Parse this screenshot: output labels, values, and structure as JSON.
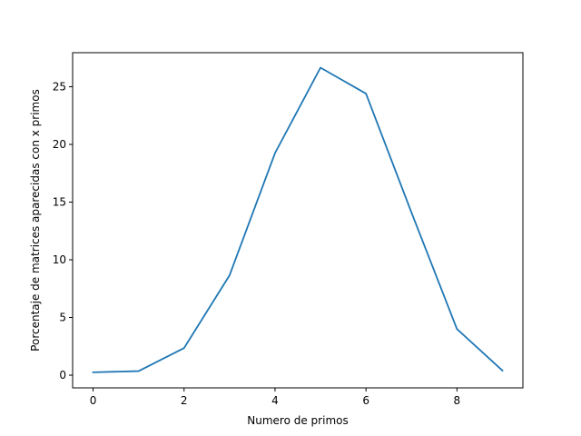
{
  "chart_data": {
    "type": "line",
    "title": "",
    "xlabel": "Numero de primos",
    "ylabel": "Porcentaje de matrices aparecidas con x primos",
    "xlim": [
      -0.45,
      9.45
    ],
    "ylim": [
      -1.1,
      27.95
    ],
    "xticks": [
      0,
      2,
      4,
      6,
      8
    ],
    "xtick_labels": [
      "0",
      "2",
      "4",
      "6",
      "8"
    ],
    "yticks": [
      0,
      5,
      10,
      15,
      20,
      25
    ],
    "ytick_labels": [
      "0",
      "5",
      "10",
      "15",
      "20",
      "25"
    ],
    "grid": false,
    "legend": "none",
    "line_color": "#1f77b4",
    "series": [
      {
        "x": [
          0,
          1,
          2,
          3,
          4,
          5,
          6,
          7,
          8,
          9
        ],
        "values": [
          0.25,
          0.35,
          2.35,
          8.65,
          19.25,
          26.65,
          24.4,
          14.1,
          4.0,
          0.4
        ]
      }
    ]
  }
}
